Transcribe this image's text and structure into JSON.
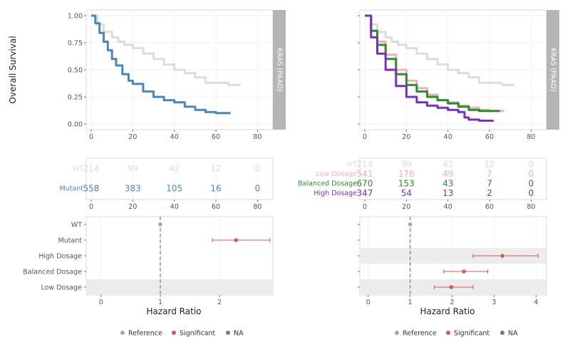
{
  "colors": {
    "wt": "#dcdcdc",
    "mutant": "#4a86b8",
    "low": "#f0b0bc",
    "balanced": "#2e8b2e",
    "high": "#7b2fbf",
    "reference": "#a8a8a8",
    "significant": "#d45a50",
    "na": "#7a7a7a",
    "strip": "#b5b5b5",
    "shade": "#ececec"
  },
  "shared": {
    "ylabel": "Overall Survival",
    "strip_label": "KRAS (PAAD)",
    "hr_xlabel": "Hazard Ratio"
  },
  "legend": {
    "items": [
      {
        "label": "Reference",
        "color_key": "reference"
      },
      {
        "label": "Significant",
        "color_key": "significant"
      },
      {
        "label": "NA",
        "color_key": "na"
      }
    ]
  },
  "chart_data": [
    {
      "id": "survival_left",
      "type": "line",
      "xlim": [
        0,
        85
      ],
      "ylim": [
        0,
        1.0
      ],
      "xticks": [
        0,
        20,
        40,
        60,
        80
      ],
      "yticks": [
        "0.00",
        "0.25",
        "0.50",
        "0.75",
        "1.00"
      ],
      "series": [
        {
          "name": "WT",
          "color_key": "wt",
          "x": [
            0,
            3,
            6,
            10,
            13,
            16,
            20,
            25,
            30,
            35,
            40,
            45,
            50,
            55,
            60,
            66,
            72
          ],
          "y": [
            1.0,
            0.92,
            0.85,
            0.8,
            0.76,
            0.73,
            0.7,
            0.65,
            0.6,
            0.55,
            0.5,
            0.47,
            0.43,
            0.38,
            0.38,
            0.36,
            0.36
          ]
        },
        {
          "name": "Mutant",
          "color_key": "mutant",
          "x": [
            0,
            2,
            4,
            6,
            8,
            10,
            12,
            15,
            18,
            20,
            25,
            30,
            35,
            40,
            45,
            50,
            55,
            60,
            67
          ],
          "y": [
            1.0,
            0.93,
            0.84,
            0.76,
            0.68,
            0.6,
            0.54,
            0.46,
            0.4,
            0.37,
            0.3,
            0.25,
            0.22,
            0.2,
            0.16,
            0.13,
            0.11,
            0.1,
            0.1
          ]
        }
      ]
    },
    {
      "id": "survival_right",
      "type": "line",
      "xlim": [
        0,
        85
      ],
      "ylim": [
        0,
        1.0
      ],
      "xticks": [
        0,
        20,
        40,
        60,
        80
      ],
      "yticks": [
        "",
        "",
        "",
        "",
        ""
      ],
      "series": [
        {
          "name": "WT",
          "color_key": "wt",
          "x": [
            0,
            3,
            6,
            10,
            13,
            16,
            20,
            25,
            30,
            35,
            40,
            45,
            50,
            55,
            60,
            66,
            72
          ],
          "y": [
            1.0,
            0.92,
            0.85,
            0.8,
            0.76,
            0.73,
            0.7,
            0.65,
            0.6,
            0.55,
            0.5,
            0.47,
            0.43,
            0.38,
            0.38,
            0.36,
            0.36
          ]
        },
        {
          "name": "Low Dosage",
          "color_key": "low",
          "x": [
            0,
            3,
            6,
            10,
            15,
            20,
            25,
            30,
            35,
            40,
            45,
            50,
            55,
            60,
            67
          ],
          "y": [
            1.0,
            0.86,
            0.76,
            0.64,
            0.5,
            0.4,
            0.33,
            0.27,
            0.22,
            0.2,
            0.17,
            0.15,
            0.13,
            0.12,
            0.12
          ]
        },
        {
          "name": "Balanced Dosage",
          "color_key": "balanced",
          "x": [
            0,
            3,
            6,
            10,
            15,
            20,
            25,
            30,
            35,
            40,
            45,
            50,
            55,
            60,
            65
          ],
          "y": [
            1.0,
            0.86,
            0.73,
            0.6,
            0.46,
            0.36,
            0.3,
            0.25,
            0.22,
            0.19,
            0.16,
            0.13,
            0.12,
            0.12,
            0.12
          ]
        },
        {
          "name": "High Dosage",
          "color_key": "high",
          "x": [
            0,
            3,
            6,
            10,
            15,
            20,
            25,
            30,
            35,
            40,
            45,
            48,
            50,
            55,
            60,
            62
          ],
          "y": [
            1.0,
            0.8,
            0.65,
            0.5,
            0.35,
            0.25,
            0.2,
            0.17,
            0.15,
            0.13,
            0.11,
            0.06,
            0.04,
            0.03,
            0.03,
            0.03
          ]
        }
      ]
    },
    {
      "id": "risk_left",
      "type": "table",
      "xlim": [
        0,
        85
      ],
      "times": [
        0,
        20,
        40,
        60,
        80
      ],
      "xticks": [
        0,
        20,
        40,
        60,
        80
      ],
      "rows": [
        {
          "name": "WT",
          "color_key": "wt",
          "counts": [
            "214",
            "99",
            "42",
            "12",
            "0"
          ]
        },
        {
          "name": "Mutant",
          "color_key": "mutant",
          "counts": [
            "558",
            "383",
            "105",
            "16",
            "0"
          ]
        }
      ]
    },
    {
      "id": "risk_right",
      "type": "table",
      "xlim": [
        0,
        85
      ],
      "times": [
        0,
        20,
        40,
        60,
        80
      ],
      "xticks": [
        0,
        20,
        40,
        60,
        80
      ],
      "rows": [
        {
          "name": "WT",
          "color_key": "wt",
          "counts": [
            "214",
            "99",
            "42",
            "12",
            "0"
          ]
        },
        {
          "name": "Low Dosage",
          "color_key": "low",
          "counts": [
            "541",
            "176",
            "49",
            "7",
            "0"
          ]
        },
        {
          "name": "Balanced Dosage",
          "color_key": "balanced",
          "counts": [
            "670",
            "153",
            "43",
            "7",
            "0"
          ]
        },
        {
          "name": "High Dosage",
          "color_key": "high",
          "counts": [
            "347",
            "54",
            "13",
            "2",
            "0"
          ]
        }
      ]
    },
    {
      "id": "hr_left",
      "type": "scatter",
      "xlim": [
        -0.25,
        2.9
      ],
      "xticks": [
        0,
        1,
        2
      ],
      "reference_line": 1,
      "categories": [
        "WT",
        "Mutant",
        "High Dosage",
        "Balanced Dosage",
        "Low Dosage"
      ],
      "shaded": [
        "Low Dosage"
      ],
      "points": [
        {
          "category": "WT",
          "hr": 1.0,
          "lo": null,
          "hi": null,
          "status": "reference"
        },
        {
          "category": "Mutant",
          "hr": 2.28,
          "lo": 1.88,
          "hi": 2.85,
          "status": "significant"
        }
      ]
    },
    {
      "id": "hr_right",
      "type": "scatter",
      "xlim": [
        -0.2,
        4.25
      ],
      "xticks": [
        0,
        1,
        2,
        3,
        4
      ],
      "reference_line": 1,
      "categories": [
        "WT",
        "Mutant",
        "High Dosage",
        "Balanced Dosage",
        "Low Dosage"
      ],
      "show_category_labels": false,
      "shaded": [
        "High Dosage",
        "Low Dosage"
      ],
      "points": [
        {
          "category": "WT",
          "hr": 1.0,
          "lo": null,
          "hi": null,
          "status": "reference"
        },
        {
          "category": "High Dosage",
          "hr": 3.2,
          "lo": 2.5,
          "hi": 4.05,
          "status": "significant"
        },
        {
          "category": "Balanced Dosage",
          "hr": 2.28,
          "lo": 1.8,
          "hi": 2.85,
          "status": "significant"
        },
        {
          "category": "Low Dosage",
          "hr": 1.98,
          "lo": 1.58,
          "hi": 2.5,
          "status": "significant"
        }
      ]
    }
  ]
}
